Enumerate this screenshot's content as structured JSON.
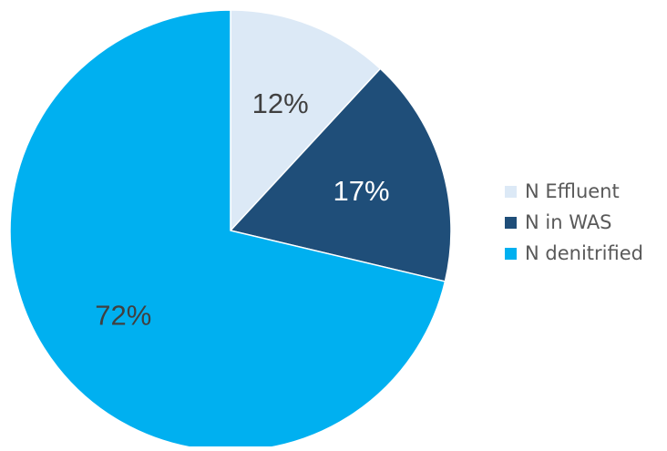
{
  "chart_data": {
    "type": "pie",
    "title": "",
    "categories": [
      "N Effluent",
      "N in WAS",
      "N denitrified"
    ],
    "values": [
      12,
      17,
      72
    ],
    "data_labels": [
      "12%",
      "17%",
      "72%"
    ],
    "colors": [
      "#dce9f6",
      "#1f4e79",
      "#00b0f0"
    ],
    "label_colors": [
      "#404040",
      "#ffffff",
      "#404040"
    ],
    "start_angle": "12 o'clock",
    "direction": "clockwise",
    "legend": {
      "position": "right",
      "items": [
        {
          "label": "N Effluent",
          "color": "#dce9f6"
        },
        {
          "label": "N in WAS",
          "color": "#1f4e79"
        },
        {
          "label": "N denitrified",
          "color": "#00b0f0"
        }
      ]
    }
  }
}
